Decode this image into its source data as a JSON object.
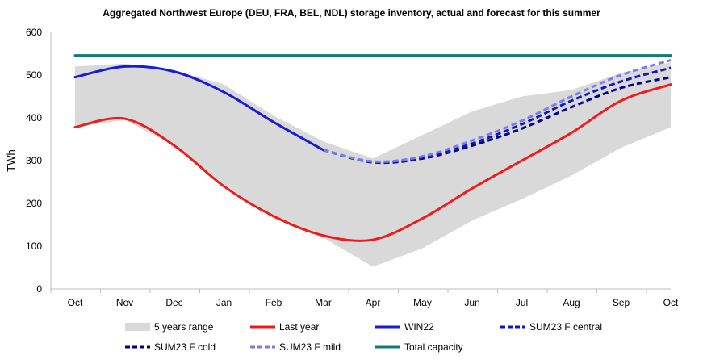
{
  "chart_data": {
    "type": "line",
    "title": "Aggregated Northwest Europe (DEU, FRA, BEL, NDL) storage inventory, actual and forecast for this summer",
    "ylabel": "TWh",
    "xlabel": "",
    "ylim": [
      0,
      600
    ],
    "yticks": [
      "0",
      "100",
      "200",
      "300",
      "400",
      "500",
      "600"
    ],
    "categories": [
      "Oct",
      "Nov",
      "Dec",
      "Jan",
      "Feb",
      "Mar",
      "Apr",
      "May",
      "Jun",
      "Jul",
      "Aug",
      "Sep",
      "Oct"
    ],
    "grid": false,
    "legend_position": "bottom",
    "range": {
      "name": "5 years range",
      "color": "#d9d9d9",
      "upper": [
        520,
        527,
        512,
        478,
        405,
        345,
        305,
        360,
        415,
        450,
        465,
        505,
        530
      ],
      "lower": [
        378,
        395,
        335,
        245,
        165,
        120,
        52,
        95,
        160,
        210,
        265,
        330,
        378
      ]
    },
    "series": [
      {
        "name": "Last year",
        "color": "#ee1c1c",
        "dash": false,
        "x": [
          0,
          1,
          2,
          3,
          4,
          5,
          6,
          7,
          8,
          9,
          10,
          11,
          12
        ],
        "values": [
          378,
          398,
          335,
          240,
          170,
          125,
          115,
          165,
          235,
          300,
          365,
          440,
          478
        ]
      },
      {
        "name": "WIN22",
        "color": "#1b1bd1",
        "dash": false,
        "x": [
          0,
          1,
          2,
          3,
          4,
          5
        ],
        "values": [
          495,
          520,
          508,
          460,
          390,
          325
        ]
      },
      {
        "name": "SUM23 F central",
        "color": "#1515b8",
        "dash": true,
        "x": [
          5,
          6,
          7,
          8,
          9,
          10,
          11,
          12
        ],
        "values": [
          325,
          297,
          307,
          340,
          385,
          440,
          485,
          517
        ]
      },
      {
        "name": "SUM23 F cold",
        "color": "#00008b",
        "dash": true,
        "x": [
          5,
          6,
          7,
          8,
          9,
          10,
          11,
          12
        ],
        "values": [
          325,
          296,
          305,
          335,
          375,
          425,
          470,
          495
        ]
      },
      {
        "name": "SUM23 F mild",
        "color": "#7b7bf0",
        "dash": true,
        "x": [
          5,
          6,
          7,
          8,
          9,
          10,
          11,
          12
        ],
        "values": [
          325,
          298,
          310,
          347,
          393,
          450,
          500,
          535
        ]
      },
      {
        "name": "Total capacity",
        "color": "#117a7a",
        "dash": false,
        "x": [
          0,
          12
        ],
        "values": [
          546,
          546
        ]
      }
    ],
    "legend": [
      "5 years range",
      "Last year",
      "WIN22",
      "SUM23 F central",
      "SUM23 F cold",
      "SUM23 F mild",
      "Total capacity"
    ]
  }
}
